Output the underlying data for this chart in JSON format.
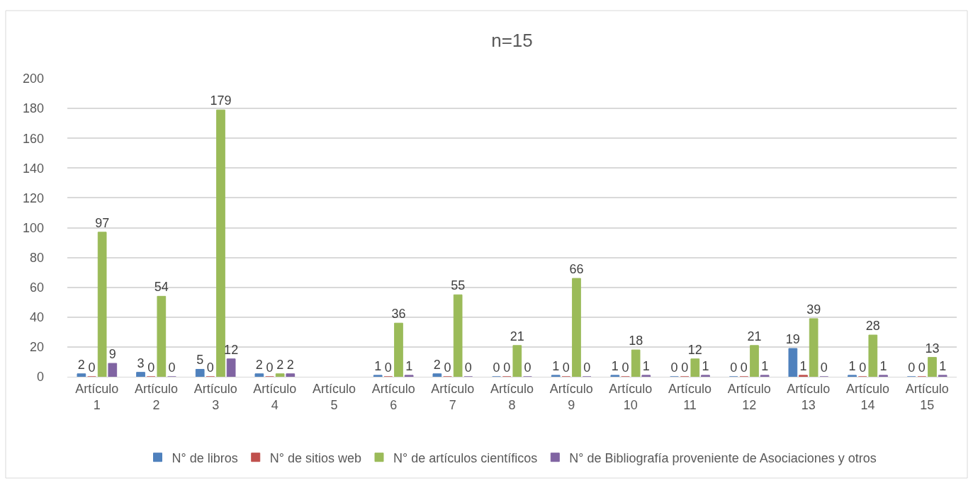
{
  "chart_data": {
    "type": "bar",
    "title": "n=15",
    "categories": [
      "Artículo 1",
      "Artículo 2",
      "Artículo 3",
      "Artículo 4",
      "Artículo 5",
      "Artículo 6",
      "Artículo 7",
      "Artículo 8",
      "Artículo 9",
      "Artículo 10",
      "Artículo 11",
      "Artículo 12",
      "Artículo 13",
      "Artículo 14",
      "Artículo 15"
    ],
    "series": [
      {
        "name": "N° de libros",
        "color": "#4f81bd",
        "values": [
          2,
          3,
          5,
          2,
          null,
          1,
          2,
          0,
          1,
          1,
          0,
          0,
          19,
          1,
          0
        ]
      },
      {
        "name": "N° de sitios web",
        "color": "#c0504d",
        "values": [
          0,
          0,
          0,
          0,
          null,
          0,
          0,
          0,
          0,
          0,
          0,
          0,
          1,
          0,
          0
        ]
      },
      {
        "name": "N° de artículos científicos",
        "color": "#9bbb59",
        "values": [
          97,
          54,
          179,
          2,
          null,
          36,
          55,
          21,
          66,
          18,
          12,
          21,
          39,
          28,
          13
        ]
      },
      {
        "name": "N° de Bibliografía proveniente de Asociaciones y otros",
        "color": "#8064a2",
        "values": [
          9,
          0,
          12,
          2,
          null,
          1,
          0,
          0,
          0,
          1,
          1,
          1,
          0,
          1,
          1
        ]
      }
    ],
    "ylim": [
      0,
      200
    ],
    "yticks": [
      0,
      20,
      40,
      60,
      80,
      100,
      120,
      140,
      160,
      180,
      200
    ],
    "grid": "y",
    "legend": "bottom",
    "data_labels": true
  }
}
